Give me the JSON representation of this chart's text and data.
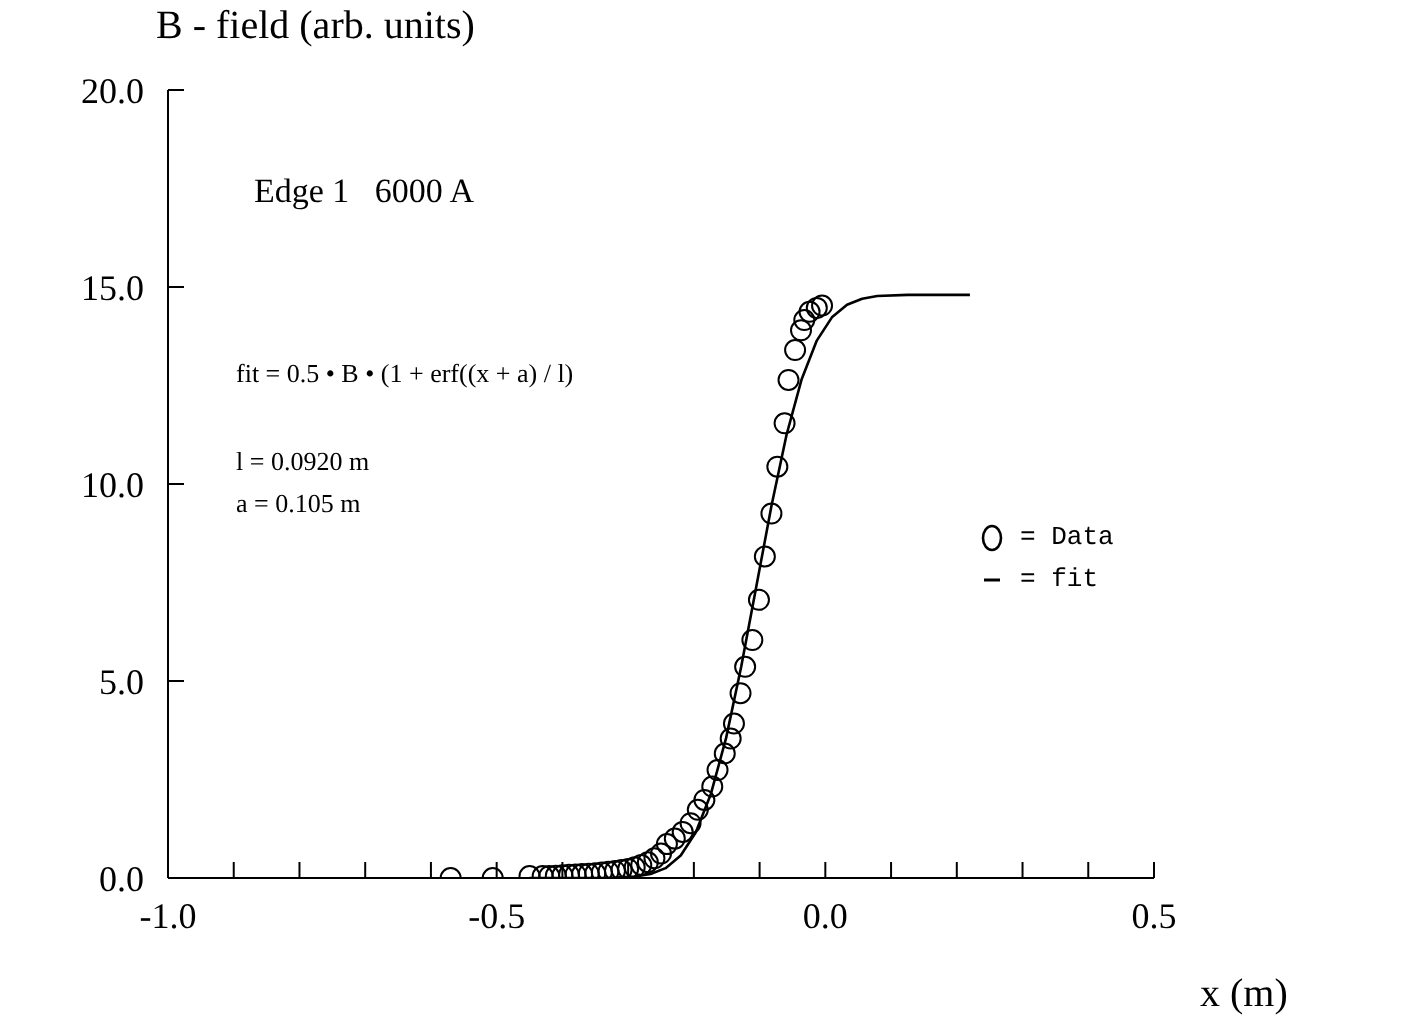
{
  "chart_data": {
    "type": "scatter",
    "ylabel": "B - field (arb. units)",
    "xlabel": "x (m)",
    "annotations": [
      "Edge 1   6000 A",
      "fit = 0.5 • B • (1 + erf((x + a) / l)",
      "l = 0.0920 m",
      "a = 0.105 m"
    ],
    "series": [
      {
        "name": "= Data",
        "color": "#000000",
        "marker": "circle",
        "x": [
          -0.57,
          -0.506,
          -0.45,
          -0.43,
          -0.42,
          -0.41,
          -0.4,
          -0.39,
          -0.38,
          -0.37,
          -0.36,
          -0.35,
          -0.34,
          -0.33,
          -0.32,
          -0.31,
          -0.3,
          -0.29,
          -0.28,
          -0.27,
          -0.26,
          -0.25,
          -0.241,
          -0.229,
          -0.217,
          -0.205,
          -0.194,
          -0.184,
          -0.172,
          -0.164,
          -0.153,
          -0.144,
          -0.139,
          -0.129,
          -0.122,
          -0.111,
          -0.101,
          -0.092,
          -0.082,
          -0.073,
          -0.062,
          -0.056,
          -0.046,
          -0.037,
          -0.032,
          -0.024,
          -0.013,
          -0.005
        ],
        "values": [
          0.0,
          0.0,
          0.05,
          0.05,
          0.05,
          0.06,
          0.07,
          0.08,
          0.09,
          0.1,
          0.11,
          0.12,
          0.14,
          0.16,
          0.18,
          0.2,
          0.23,
          0.27,
          0.33,
          0.4,
          0.5,
          0.62,
          0.86,
          1.0,
          1.17,
          1.39,
          1.73,
          1.98,
          2.32,
          2.74,
          3.16,
          3.54,
          3.92,
          4.69,
          5.36,
          6.04,
          7.06,
          8.16,
          9.25,
          10.44,
          11.54,
          12.64,
          13.4,
          13.9,
          14.16,
          14.37,
          14.47,
          14.53
        ]
      },
      {
        "name": "= fit",
        "type": "line",
        "color": "#000000",
        "marker": "none",
        "line_style": "solid",
        "x": [
          -0.45,
          -0.381,
          -0.335,
          -0.289,
          -0.266,
          -0.243,
          -0.22,
          -0.197,
          -0.174,
          -0.151,
          -0.128,
          -0.105,
          -0.082,
          -0.059,
          -0.036,
          -0.013,
          0.01,
          0.033,
          0.056,
          0.079,
          0.125,
          0.171,
          0.22
        ],
        "values": [
          0.0,
          0.0,
          0.0,
          0.04,
          0.1,
          0.25,
          0.57,
          1.16,
          2.14,
          3.55,
          5.36,
          7.4,
          9.44,
          11.25,
          12.66,
          13.64,
          14.23,
          14.55,
          14.7,
          14.77,
          14.8,
          14.8,
          14.8
        ]
      }
    ],
    "xlim": [
      -1.0,
      0.5
    ],
    "xticks": [
      {
        "value": -1.0,
        "label": "-1.0"
      },
      {
        "value": -0.9,
        "label": null
      },
      {
        "value": -0.8,
        "label": null
      },
      {
        "value": -0.7,
        "label": null
      },
      {
        "value": -0.6,
        "label": null
      },
      {
        "value": -0.5,
        "label": "-0.5"
      },
      {
        "value": -0.4,
        "label": null
      },
      {
        "value": -0.3,
        "label": null
      },
      {
        "value": -0.2,
        "label": null
      },
      {
        "value": -0.1,
        "label": null
      },
      {
        "value": 0.0,
        "label": "0.0"
      },
      {
        "value": 0.1,
        "label": null
      },
      {
        "value": 0.2,
        "label": null
      },
      {
        "value": 0.3,
        "label": null
      },
      {
        "value": 0.4,
        "label": null
      },
      {
        "value": 0.5,
        "label": "0.5"
      }
    ],
    "ylim": [
      0,
      20
    ],
    "yticks": [
      {
        "value": 0,
        "label": "0.0"
      },
      {
        "value": 5,
        "label": "5.0"
      },
      {
        "value": 10,
        "label": "10.0"
      },
      {
        "value": 15,
        "label": "15.0"
      },
      {
        "value": 20,
        "label": "20.0"
      }
    ],
    "legend": "right"
  }
}
